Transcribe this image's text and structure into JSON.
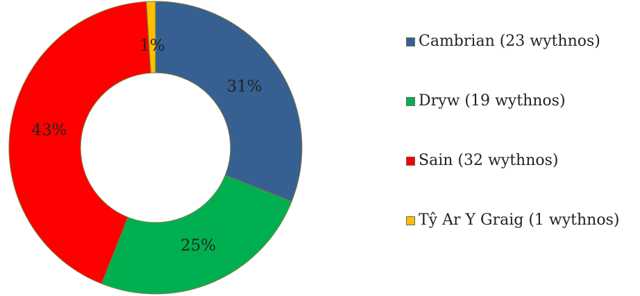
{
  "chart_data": {
    "type": "doughnut",
    "categories": [
      "Cambrian (23 wythnos)",
      "Dryw (19 wythnos)",
      "Sain (32 wythnos)",
      "Tŷ Ar Y Graig (1 wythnos)"
    ],
    "values": [
      31,
      25,
      43,
      1
    ],
    "value_labels": [
      "31%",
      "25%",
      "43%",
      "1%"
    ],
    "colors": [
      "#376092",
      "#00b050",
      "#ff0000",
      "#ffc000"
    ],
    "legend": "right"
  }
}
